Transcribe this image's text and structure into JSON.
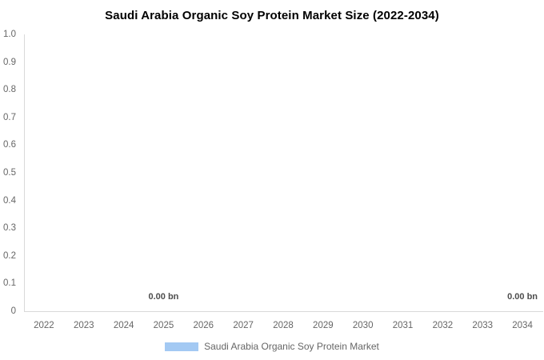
{
  "title": "Saudi Arabia Organic Soy Protein Market Size (2022-2034)",
  "chart_data": {
    "type": "bar",
    "categories": [
      "2022",
      "2023",
      "2024",
      "2025",
      "2026",
      "2027",
      "2028",
      "2029",
      "2030",
      "2031",
      "2032",
      "2033",
      "2034"
    ],
    "series": [
      {
        "name": "Saudi Arabia Organic Soy Protein Market",
        "values": [
          0,
          0,
          0,
          0,
          0,
          0,
          0,
          0,
          0,
          0,
          0,
          0,
          0
        ]
      }
    ],
    "value_labels": [
      {
        "category": "2025",
        "text": "0.00 bn"
      },
      {
        "category": "2034",
        "text": "0.00 bn"
      }
    ],
    "ylim": [
      0,
      1.0
    ],
    "yticks": [
      "1.0",
      "0.9",
      "0.8",
      "0.7",
      "0.6",
      "0.5",
      "0.4",
      "0.3",
      "0.2",
      "0.1",
      "0"
    ],
    "xlabel": "",
    "ylabel": "",
    "grid": false,
    "legend_position": "bottom"
  },
  "legend": {
    "items": [
      {
        "label": "Saudi Arabia Organic Soy Protein Market",
        "color": "#a3c9f3"
      }
    ]
  },
  "colors": {
    "series": "#a3c9f3",
    "axis_line": "#d9d9d9",
    "tick_label": "#666666",
    "title": "#000000",
    "value_label": "#4d4d4d",
    "background": "#ffffff"
  }
}
